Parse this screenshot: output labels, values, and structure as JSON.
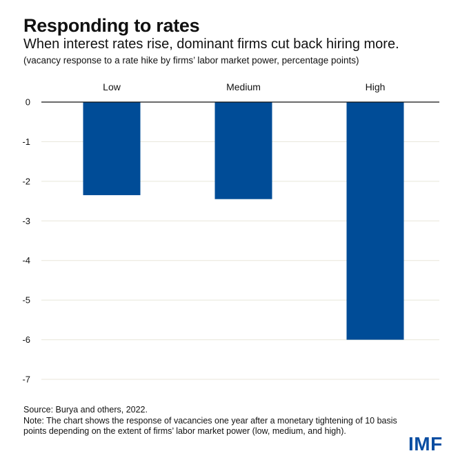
{
  "header": {
    "title": "Responding to rates",
    "subtitle": "When interest rates rise, dominant firms cut back hiring more.",
    "note": "(vacancy response to a rate hike by firms’ labor market power, percentage points)"
  },
  "footer": {
    "source": "Source: Burya and others, 2022.",
    "note": "Note: The chart shows the response of vacancies one year after a monetary tightening of 10 basis points depending on the extent of firms’ labor market power (low, medium, and high)."
  },
  "logo": {
    "text": "IMF",
    "color": "#0b4ea2"
  },
  "chart_data": {
    "type": "bar",
    "categories": [
      "Low",
      "Medium",
      "High"
    ],
    "values": [
      -2.35,
      -2.45,
      -6.0
    ],
    "ylim": [
      -7,
      0
    ],
    "yticks": [
      0,
      -1,
      -2,
      -3,
      -4,
      -5,
      -6,
      -7
    ],
    "ytick_labels": [
      "0",
      "-1",
      "-2",
      "-3",
      "-4",
      "-5",
      "-6",
      "-7"
    ],
    "category_labels_position": "top",
    "grid": true,
    "bar_color": "#004c97",
    "grid_color": "#e8e6d9",
    "zero_line_color": "#111111"
  }
}
